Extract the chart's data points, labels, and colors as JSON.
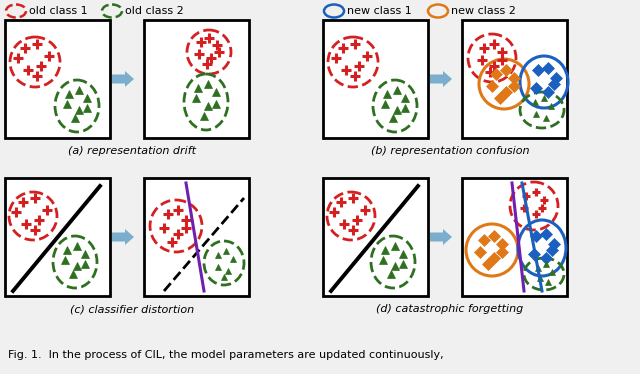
{
  "fig_width": 6.4,
  "fig_height": 3.74,
  "dpi": 100,
  "bg_color": "#f0f0f0",
  "panel_bg": "#ffffff",
  "panel_border": "#000000",
  "arrow_color": "#7aaecc",
  "red_color": "#d42020",
  "green_color": "#2e7020",
  "blue_color": "#1a60c0",
  "orange_color": "#e07818",
  "purple_color": "#7020b0",
  "black_color": "#000000",
  "gray_color": "#888888",
  "caption": "Fig. 1.  In the process of CIL, the model parameters are updated continuously,",
  "panel_labels": [
    "(a) representation drift",
    "(b) representation confusion",
    "(c) classifier distortion",
    "(d) catastrophic forgetting"
  ],
  "legend_items": [
    "old class 1",
    "old class 2",
    "new class 1",
    "new class 2"
  ]
}
